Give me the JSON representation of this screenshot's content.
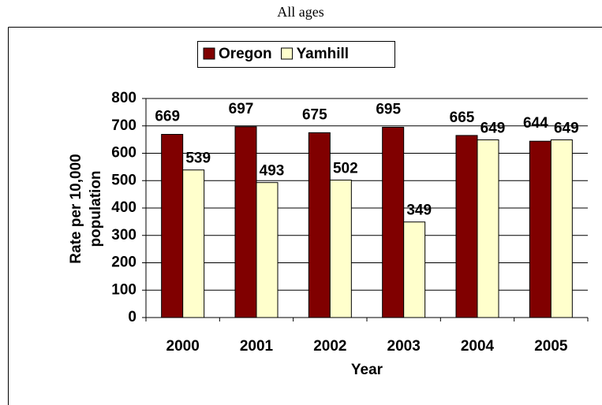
{
  "chart_data": {
    "type": "bar",
    "title": "All ages",
    "x_label": "Year",
    "y_label": [
      "Rate per 10,000",
      "population"
    ],
    "categories": [
      "2000",
      "2001",
      "2002",
      "2003",
      "2004",
      "2005"
    ],
    "series": [
      {
        "name": "Oregon",
        "color": "#800000",
        "values": [
          669,
          697,
          675,
          695,
          665,
          644
        ]
      },
      {
        "name": "Yamhill",
        "color": "#ffffcc",
        "values": [
          539,
          493,
          502,
          349,
          649,
          649
        ]
      }
    ],
    "ylim": [
      0,
      800
    ],
    "yticks": [
      0,
      100,
      200,
      300,
      400,
      500,
      600,
      700,
      800
    ],
    "grid": true,
    "legend": "top"
  }
}
